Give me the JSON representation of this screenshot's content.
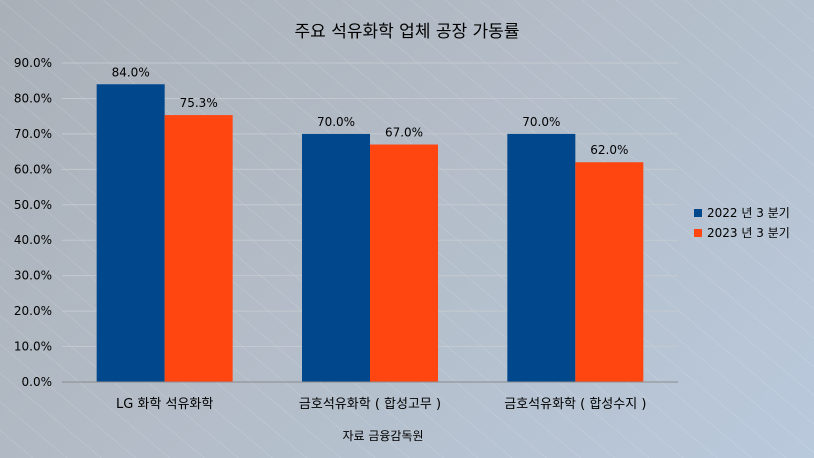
{
  "chart_data": {
    "type": "bar",
    "title": "주요 석유화학 업체 공장 가동률",
    "xlabel": "자료 금융감독원",
    "ylabel": "",
    "ylim": [
      0,
      90
    ],
    "y_ticks": [
      "0.0%",
      "10.0%",
      "20.0%",
      "30.0%",
      "40.0%",
      "50.0%",
      "60.0%",
      "70.0%",
      "80.0%",
      "90.0%"
    ],
    "categories": [
      "LG 화학 석유화학",
      "금호석유화학 ( 합성고무 )",
      "금호석유화학 ( 합성수지 )"
    ],
    "series": [
      {
        "name": "2022 년  3 분기",
        "color": "#00478c",
        "values": [
          84.0,
          70.0,
          70.0
        ],
        "labels": [
          "84.0%",
          "70.0%",
          "70.0%"
        ]
      },
      {
        "name": "2023 년  3 분기",
        "color": "#ff4510",
        "values": [
          75.3,
          67.0,
          62.0
        ],
        "labels": [
          "75.3%",
          "67.0%",
          "62.0%"
        ]
      }
    ],
    "grid": true,
    "legend": "right"
  }
}
